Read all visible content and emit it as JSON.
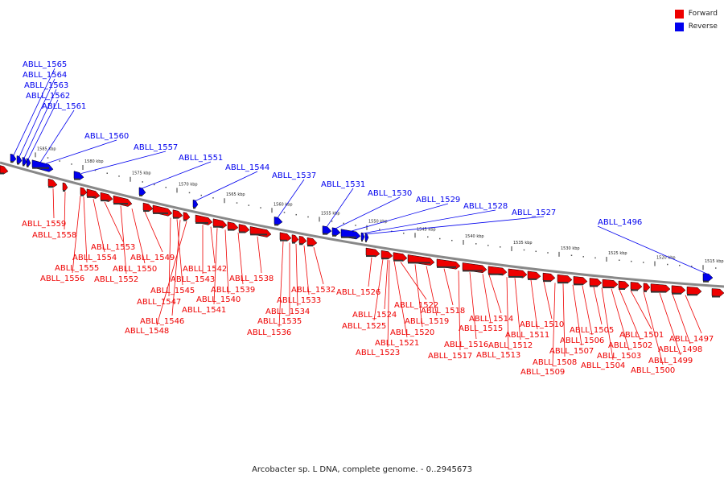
{
  "legend": [
    {
      "label": "Forward",
      "color": "#ee0000"
    },
    {
      "label": "Reverse",
      "color": "#0000ee"
    }
  ],
  "caption": "Arcobacter sp. L DNA, complete genome. - 0..2945673",
  "colors": {
    "forward": "#ee0000",
    "reverse": "#0000ee",
    "backbone": "#888888",
    "tick": "#333333"
  },
  "scale": {
    "ticks": [
      "1585 kbp",
      "1580 kbp",
      "1575 kbp",
      "1570 kbp",
      "1565 kbp",
      "1560 kbp",
      "1555 kbp",
      "1550 kbp",
      "1545 kbp",
      "1540 kbp",
      "1535 kbp",
      "1530 kbp",
      "1525 kbp",
      "1520 kbp",
      "1515 kbp"
    ]
  },
  "reverse_genes": [
    "ABLL_1565",
    "ABLL_1564",
    "ABLL_1563",
    "ABLL_1562",
    "ABLL_1561",
    "ABLL_1560",
    "ABLL_1557",
    "ABLL_1551",
    "ABLL_1544",
    "ABLL_1537",
    "ABLL_1531",
    "ABLL_1530",
    "ABLL_1529",
    "ABLL_1528",
    "ABLL_1527",
    "ABLL_1496"
  ],
  "forward_genes": [
    "ABLL_1559",
    "ABLL_1558",
    "ABLL_1553",
    "ABLL_1554",
    "ABLL_1555",
    "ABLL_1556",
    "ABLL_1550",
    "ABLL_1549",
    "ABLL_1552",
    "ABLL_1542",
    "ABLL_1543",
    "ABLL_1545",
    "ABLL_1547",
    "ABLL_1546",
    "ABLL_1548",
    "ABLL_1541",
    "ABLL_1540",
    "ABLL_1539",
    "ABLL_1538",
    "ABLL_1534",
    "ABLL_1535",
    "ABLL_1536",
    "ABLL_1533",
    "ABLL_1532",
    "ABLL_1526",
    "ABLL_1522",
    "ABLL_1524",
    "ABLL_1525",
    "ABLL_1520",
    "ABLL_1521",
    "ABLL_1523",
    "ABLL_1519",
    "ABLL_1518",
    "ABLL_1516",
    "ABLL_1517",
    "ABLL_1515",
    "ABLL_1514",
    "ABLL_1512",
    "ABLL_1513",
    "ABLL_1511",
    "ABLL_1510",
    "ABLL_1508",
    "ABLL_1509",
    "ABLL_1507",
    "ABLL_1506",
    "ABLL_1505",
    "ABLL_1504",
    "ABLL_1503",
    "ABLL_1502",
    "ABLL_1501",
    "ABLL_1500",
    "ABLL_1499",
    "ABLL_1498",
    "ABLL_1497"
  ]
}
